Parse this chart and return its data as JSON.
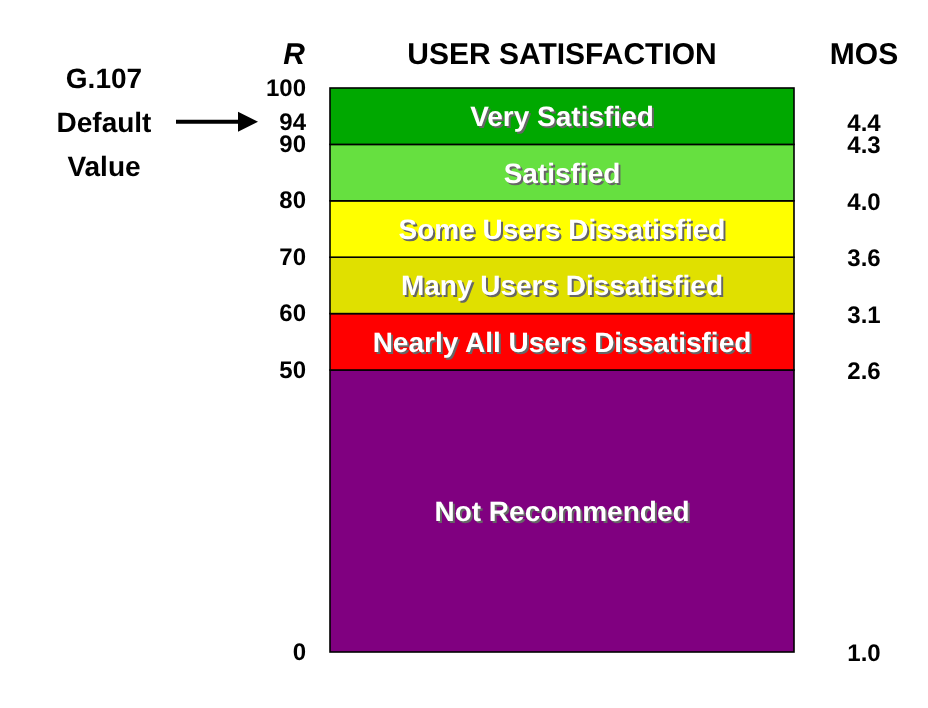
{
  "chart_data": {
    "type": "bar",
    "stacked": true,
    "title": "USER SATISFACTION",
    "ylabel": "R",
    "y2label": "MOS",
    "categories": [
      null
    ],
    "series": [
      {
        "name": "Not Recommended",
        "color": "#800080",
        "values": [
          50
        ]
      },
      {
        "name": "Nearly All Users Dissatisfied",
        "color": "#ff0000",
        "values": [
          10
        ]
      },
      {
        "name": "Many Users Dissatisfied",
        "color": "#e0e000",
        "values": [
          10
        ]
      },
      {
        "name": "Some Users Dissatisfied",
        "color": "#ffff00",
        "values": [
          10
        ]
      },
      {
        "name": "Satisfied",
        "color": "#66e040",
        "values": [
          10
        ]
      },
      {
        "name": "Very Satisfied",
        "color": "#00a800",
        "values": [
          10
        ]
      }
    ],
    "ylim": [
      0,
      100
    ],
    "yticks": [
      0,
      50,
      60,
      70,
      80,
      90,
      94,
      100
    ],
    "annotations": [
      "G.107 Default Value",
      "1.0",
      "2.6",
      "3.1",
      "3.6",
      "4.0",
      "4.3",
      "4.4"
    ],
    "legend": false,
    "grid": false
  }
}
